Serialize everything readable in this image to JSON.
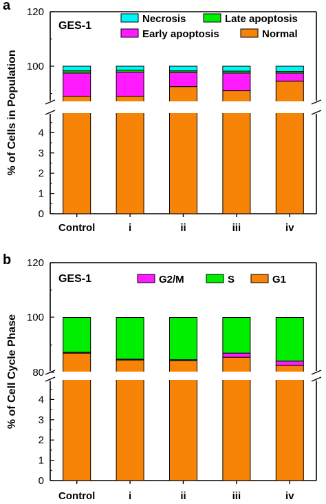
{
  "chart_data": [
    {
      "panel_label": "a",
      "type": "bar",
      "stacked": true,
      "broken_axis": true,
      "annotation": "GES-1",
      "ylabel": "% of Cells in Population",
      "categories": [
        "Control",
        "i",
        "ii",
        "iii",
        "iv"
      ],
      "lower_yticks": [
        "0",
        "1",
        "2",
        "3",
        "4"
      ],
      "upper_yticks": [
        "100",
        "120"
      ],
      "lower_ylim": [
        0,
        5
      ],
      "upper_ylim": [
        80,
        120
      ],
      "legend_layout": [
        [
          "Necrosis",
          "Late apoptosis"
        ],
        [
          "Early apoptosis",
          "Normal"
        ]
      ],
      "legend_placement": "top-right",
      "series": [
        {
          "name": "Normal",
          "color": "#f88407",
          "values": [
            89.0,
            89.0,
            92.5,
            91.0,
            94.5
          ]
        },
        {
          "name": "Early apoptosis",
          "color": "#ff1aff",
          "values": [
            8.5,
            8.8,
            5.2,
            6.5,
            3.0
          ]
        },
        {
          "name": "Late apoptosis",
          "color": "#00ee00",
          "values": [
            0.8,
            0.7,
            0.6,
            0.7,
            0.6
          ]
        },
        {
          "name": "Necrosis",
          "color": "#00f5f5",
          "values": [
            1.7,
            1.5,
            1.7,
            1.8,
            1.9
          ]
        }
      ]
    },
    {
      "panel_label": "b",
      "type": "bar",
      "stacked": true,
      "broken_axis": true,
      "annotation": "GES-1",
      "ylabel": "% of Cell Cycle Phase",
      "categories": [
        "Control",
        "i",
        "ii",
        "iii",
        "iv"
      ],
      "lower_yticks": [
        "0",
        "1",
        "2",
        "3",
        "4"
      ],
      "upper_yticks": [
        "80",
        "100",
        "120"
      ],
      "lower_ylim": [
        0,
        5
      ],
      "upper_ylim": [
        80,
        120
      ],
      "legend_layout": [
        [
          "G2/M",
          "S",
          "G1"
        ]
      ],
      "legend_placement": "top-right",
      "series": [
        {
          "name": "G1",
          "color": "#f88407",
          "values": [
            87.0,
            84.5,
            84.3,
            85.5,
            82.5
          ]
        },
        {
          "name": "G2/M",
          "color": "#ff1aff",
          "values": [
            0.3,
            0.3,
            0.3,
            1.5,
            1.6
          ]
        },
        {
          "name": "S",
          "color": "#00ee00",
          "values": [
            12.7,
            15.2,
            15.4,
            13.0,
            15.9
          ]
        }
      ]
    }
  ]
}
